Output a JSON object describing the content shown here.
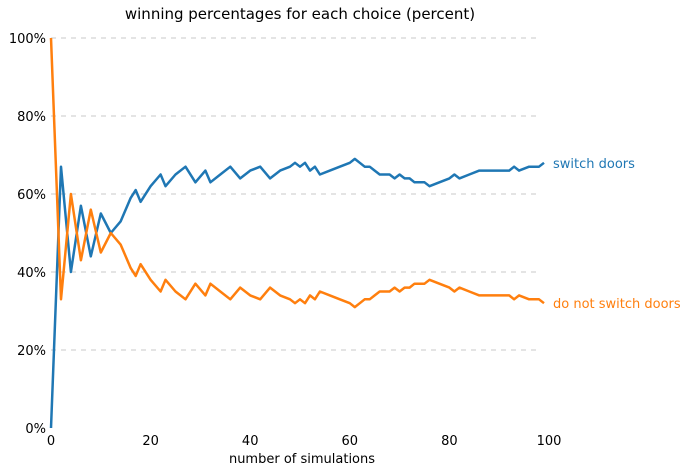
{
  "chart_data": {
    "type": "line",
    "title": "winning percentages for each choice (percent)",
    "xlabel": "number of simulations",
    "ylabel": "",
    "xlim": [
      0,
      100
    ],
    "ylim": [
      0,
      100
    ],
    "x_ticks": [
      0,
      20,
      40,
      60,
      80,
      100
    ],
    "x_tick_labels": [
      "0",
      "20",
      "40",
      "60",
      "80",
      "100"
    ],
    "y_ticks": [
      0,
      20,
      40,
      60,
      80,
      100
    ],
    "y_tick_labels": [
      "0%",
      "20%",
      "40%",
      "60%",
      "80%",
      "100%"
    ],
    "grid": "horizontal-dashed",
    "legend": "labels at line ends (right)",
    "x": [
      0,
      2,
      4,
      6,
      8,
      10,
      12,
      14,
      16,
      17,
      18,
      20,
      22,
      23,
      25,
      27,
      29,
      31,
      32,
      34,
      36,
      38,
      40,
      42,
      44,
      46,
      48,
      49,
      50,
      51,
      52,
      53,
      54,
      56,
      58,
      60,
      61,
      62,
      63,
      64,
      65,
      66,
      67,
      68,
      69,
      70,
      71,
      72,
      73,
      74,
      75,
      76,
      78,
      80,
      81,
      82,
      84,
      86,
      88,
      89,
      90,
      92,
      93,
      94,
      96,
      98,
      99
    ],
    "series": [
      {
        "name": "switch doors",
        "color": "#1f77b4",
        "values": [
          0,
          67,
          40,
          57,
          44,
          55,
          50,
          53,
          59,
          61,
          58,
          62,
          65,
          62,
          65,
          67,
          63,
          66,
          63,
          65,
          67,
          64,
          66,
          67,
          64,
          66,
          67,
          68,
          67,
          68,
          66,
          67,
          65,
          66,
          67,
          68,
          69,
          68,
          67,
          67,
          66,
          65,
          65,
          65,
          64,
          65,
          64,
          64,
          63,
          63,
          63,
          62,
          63,
          64,
          65,
          64,
          65,
          66,
          66,
          66,
          66,
          66,
          67,
          66,
          67,
          67,
          68
        ]
      },
      {
        "name": "do not switch doors",
        "color": "#ff7f0e",
        "values": [
          100,
          33,
          60,
          43,
          56,
          45,
          50,
          47,
          41,
          39,
          42,
          38,
          35,
          38,
          35,
          33,
          37,
          34,
          37,
          35,
          33,
          36,
          34,
          33,
          36,
          34,
          33,
          32,
          33,
          32,
          34,
          33,
          35,
          34,
          33,
          32,
          31,
          32,
          33,
          33,
          34,
          35,
          35,
          35,
          36,
          35,
          36,
          36,
          37,
          37,
          37,
          38,
          37,
          36,
          35,
          36,
          35,
          34,
          34,
          34,
          34,
          34,
          33,
          34,
          33,
          33,
          32
        ]
      }
    ]
  }
}
